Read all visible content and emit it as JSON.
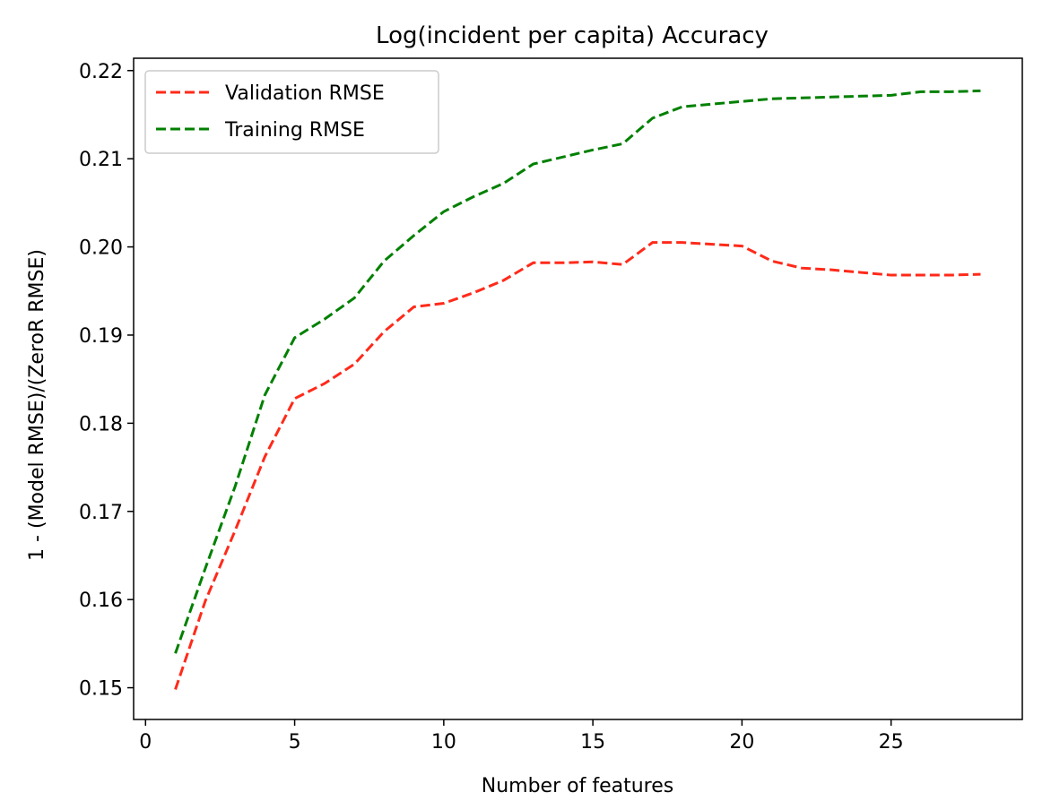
{
  "chart_data": {
    "type": "line",
    "title": "Log(incident per capita) Accuracy",
    "xlabel": "Number of features",
    "ylabel": "1 - (Model RMSE)/(ZeroR RMSE)",
    "xlim": [
      -0.4,
      29.4
    ],
    "ylim": [
      0.1464,
      0.2214
    ],
    "xticks": [
      0,
      5,
      10,
      15,
      20,
      25
    ],
    "yticks": [
      0.15,
      0.16,
      0.17,
      0.18,
      0.19,
      0.2,
      0.21,
      0.22
    ],
    "xtick_labels": [
      "0",
      "5",
      "10",
      "15",
      "20",
      "25"
    ],
    "ytick_labels": [
      "0.15",
      "0.16",
      "0.17",
      "0.18",
      "0.19",
      "0.20",
      "0.21",
      "0.22"
    ],
    "grid": false,
    "legend_position": "upper-left",
    "x": [
      1,
      2,
      3,
      4,
      5,
      6,
      7,
      8,
      9,
      10,
      11,
      12,
      13,
      14,
      15,
      16,
      17,
      18,
      19,
      20,
      21,
      22,
      23,
      24,
      25,
      26,
      27,
      28
    ],
    "series": [
      {
        "name": "Validation RMSE",
        "color": "#ff2a1a",
        "linestyle": "dashed",
        "values": [
          0.1498,
          0.1598,
          0.1678,
          0.1762,
          0.1828,
          0.1845,
          0.1867,
          0.1904,
          0.1932,
          0.1936,
          0.1948,
          0.1962,
          0.1982,
          0.1982,
          0.1983,
          0.198,
          0.2005,
          0.2005,
          0.2003,
          0.2001,
          0.1984,
          0.1976,
          0.1974,
          0.1971,
          0.1968,
          0.1968,
          0.1968,
          0.1969
        ]
      },
      {
        "name": "Training RMSE",
        "color": "#008000",
        "linestyle": "dashed",
        "values": [
          0.1539,
          0.1635,
          0.1728,
          0.1832,
          0.1897,
          0.1918,
          0.1942,
          0.1984,
          0.2013,
          0.204,
          0.2057,
          0.2072,
          0.2094,
          0.2102,
          0.211,
          0.2117,
          0.2146,
          0.2159,
          0.2162,
          0.2165,
          0.2168,
          0.2169,
          0.217,
          0.2171,
          0.2172,
          0.2176,
          0.2176,
          0.2177
        ]
      }
    ]
  }
}
